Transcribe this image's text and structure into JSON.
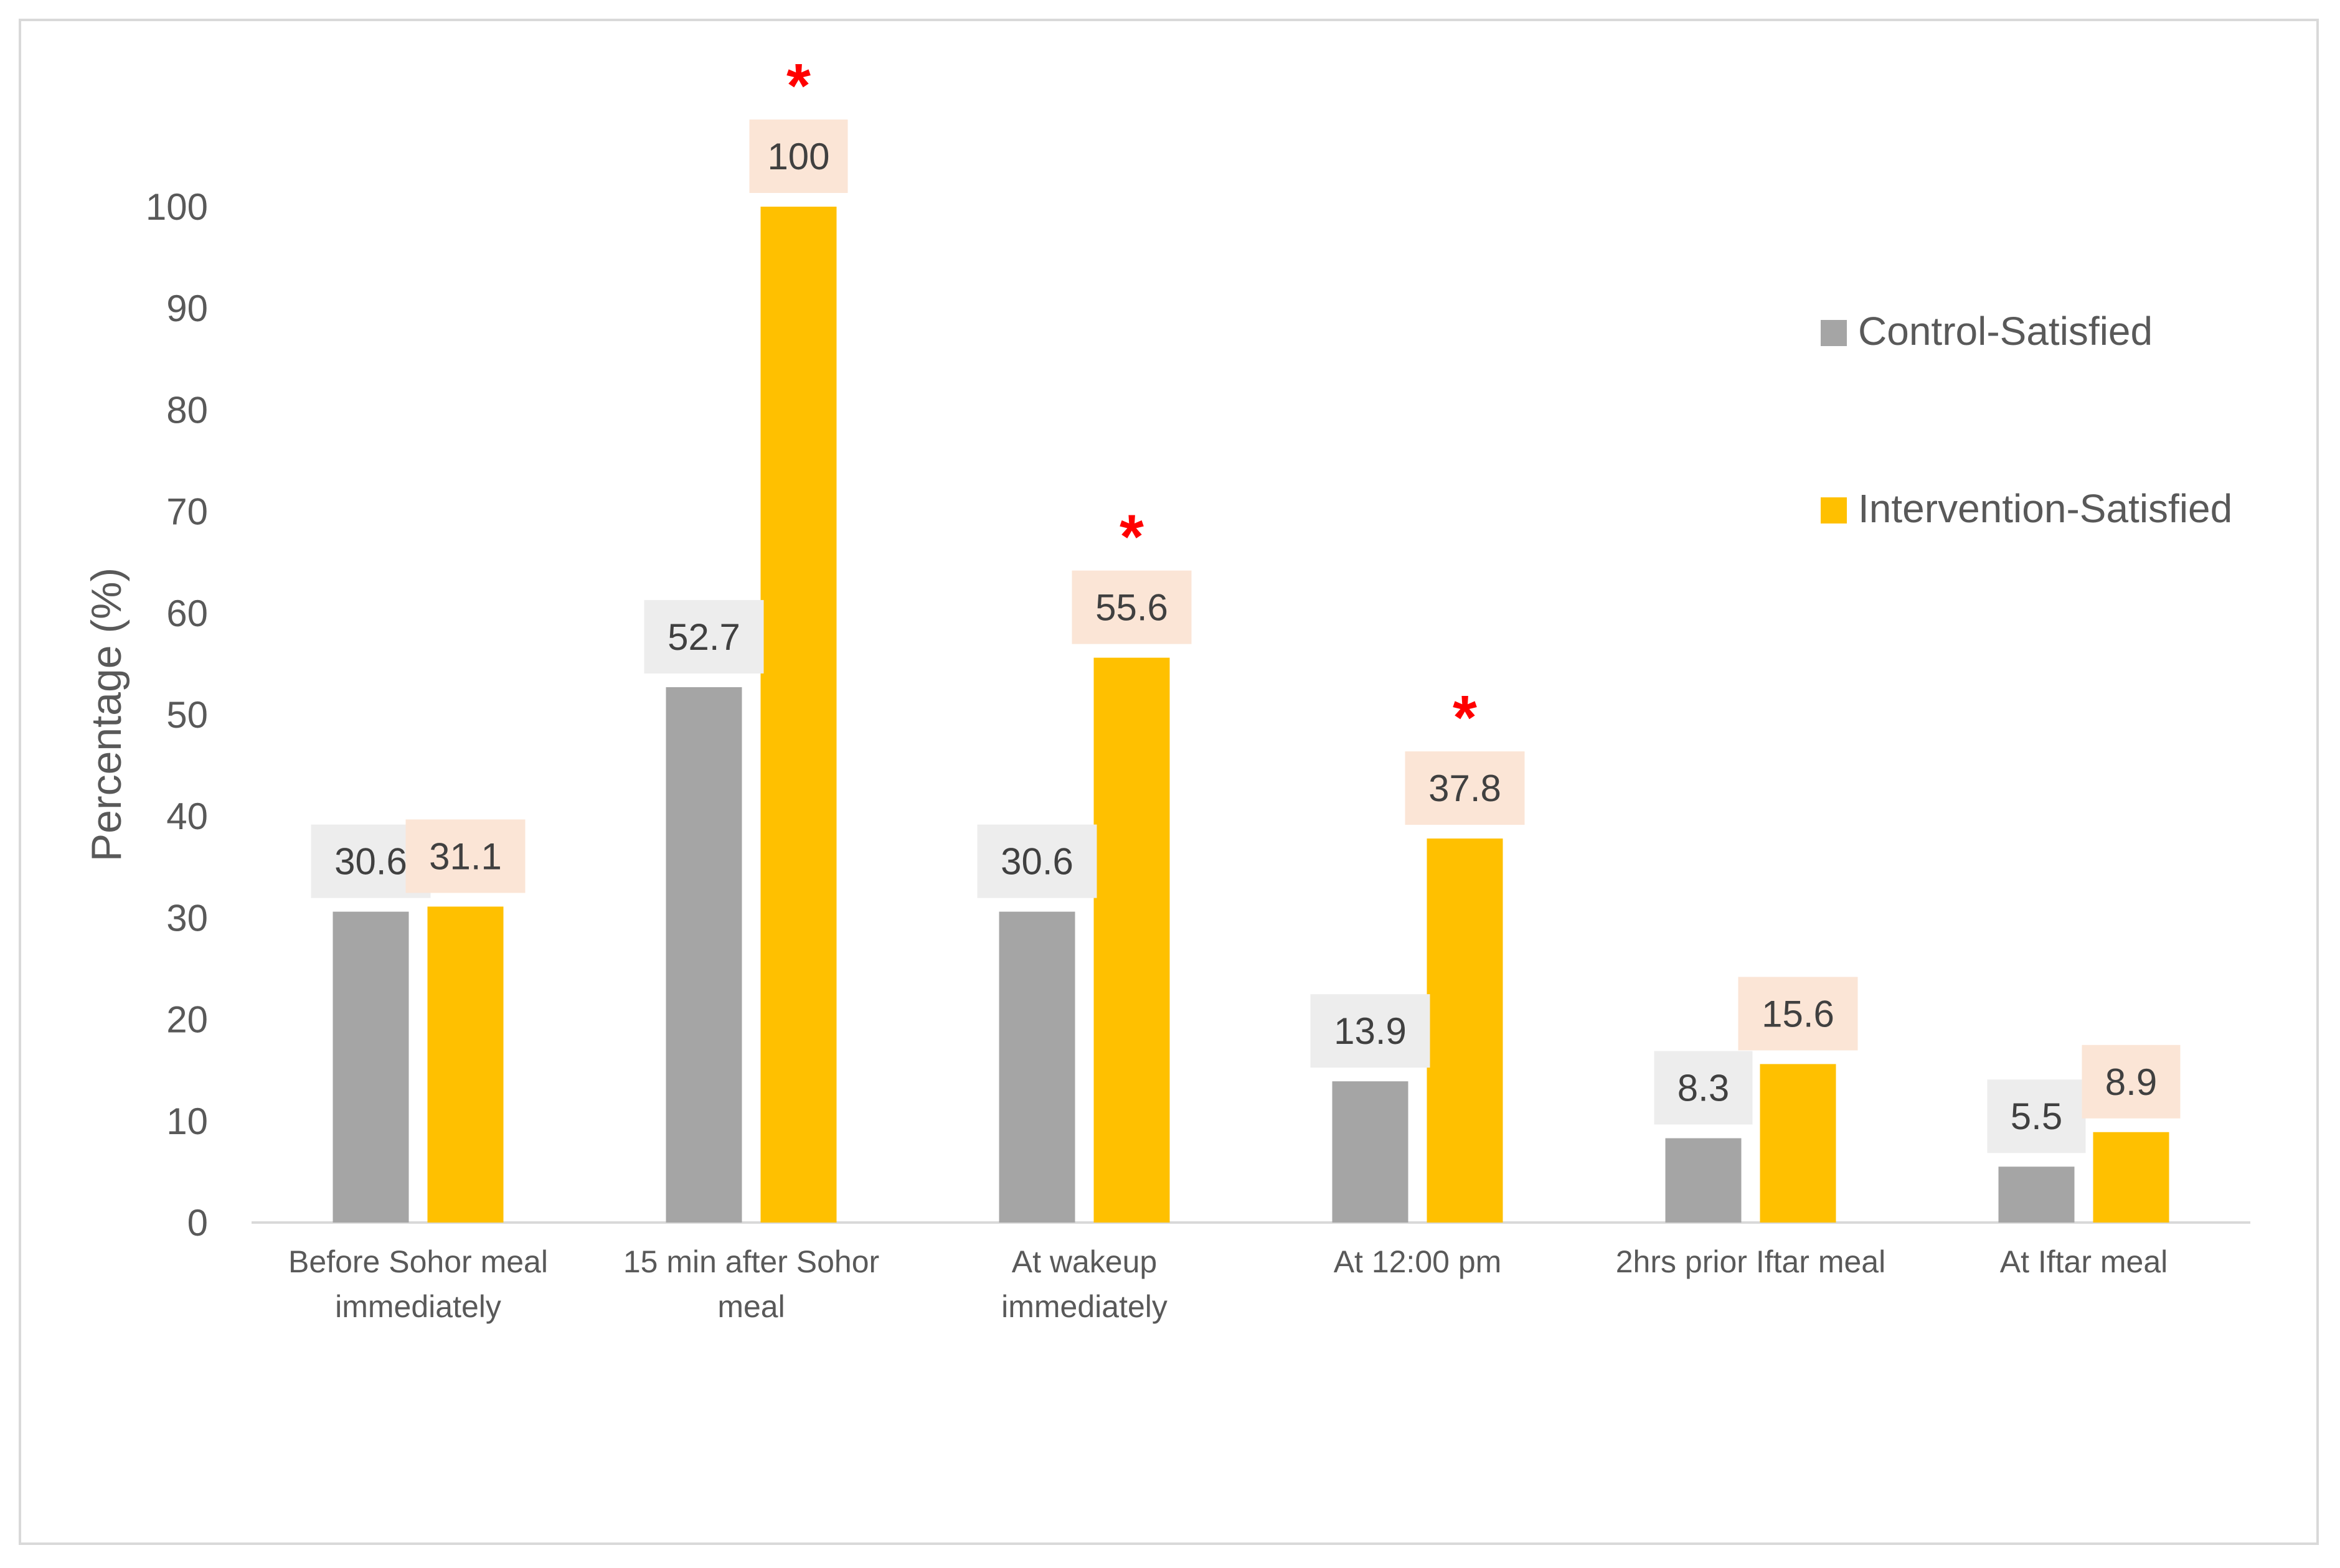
{
  "chart_data": {
    "type": "bar",
    "title": "",
    "xlabel": "",
    "ylabel": "Percentage (%)",
    "ylim": [
      0,
      100
    ],
    "yticks": [
      0,
      10,
      20,
      30,
      40,
      50,
      60,
      70,
      80,
      90,
      100
    ],
    "grid": false,
    "legend_position": "right",
    "categories": [
      [
        "Before Sohor meal",
        "immediately"
      ],
      [
        "15 min after Sohor",
        "meal"
      ],
      [
        "At wakeup",
        "immediately"
      ],
      [
        "At 12:00 pm"
      ],
      [
        "2hrs prior Iftar meal"
      ],
      [
        "At Iftar meal"
      ]
    ],
    "series": [
      {
        "name": "Control-Satisfied",
        "color": "#a5a5a5",
        "label_bg": "#ededed",
        "values": [
          30.6,
          52.7,
          30.6,
          13.9,
          8.3,
          5.5
        ]
      },
      {
        "name": "Intervention-Satisfied",
        "color": "#ffc000",
        "label_bg": "#fbe5d6",
        "values": [
          31.1,
          100,
          55.6,
          37.8,
          15.6,
          8.9
        ]
      }
    ],
    "significance_marker": "*",
    "significant": [
      false,
      true,
      true,
      true,
      false,
      false
    ]
  }
}
